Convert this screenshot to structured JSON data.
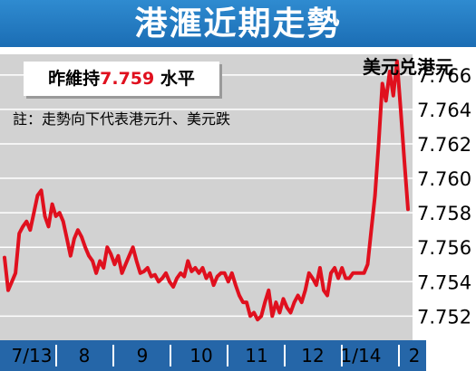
{
  "title": "港滙近期走勢",
  "value_box": {
    "prefix": "昨維持",
    "value": "7.759",
    "suffix": "水平"
  },
  "note": "註：走勢向下代表港元升、美元跌",
  "unit_label": "美元兑港元",
  "colors": {
    "title_bg": "#1f74bb",
    "line": "#e0101e",
    "plot_bg": "#d2d2d2",
    "axis_bar": "#2566a8"
  },
  "chart_data": {
    "type": "line",
    "title": "港滙近期走勢",
    "xlabel": "",
    "ylabel": "美元兑港元",
    "ylim": [
      7.7506,
      7.7672
    ],
    "y_ticks": [
      "7.752",
      "7.754",
      "7.756",
      "7.758",
      "7.760",
      "7.762",
      "7.764",
      "7.766"
    ],
    "x_ticks": [
      "7/13",
      "8",
      "9",
      "10",
      "11",
      "12",
      "1/14",
      "2"
    ],
    "grid": true,
    "series": [
      {
        "values": [
          7.7554,
          7.7535,
          7.754,
          7.7545,
          7.7568,
          7.7572,
          7.7575,
          7.757,
          7.758,
          7.759,
          7.7593,
          7.7578,
          7.7572,
          7.7585,
          7.7578,
          7.758,
          7.7575,
          7.7565,
          7.7555,
          7.7565,
          7.757,
          7.7566,
          7.756,
          7.7555,
          7.7552,
          7.7545,
          7.7552,
          7.7548,
          7.756,
          7.7556,
          7.755,
          7.7555,
          7.7545,
          7.755,
          7.7555,
          7.756,
          7.7552,
          7.7545,
          7.7546,
          7.7548,
          7.7543,
          7.7544,
          7.754,
          7.7542,
          7.7545,
          7.754,
          7.7537,
          7.7542,
          7.7545,
          7.7543,
          7.7552,
          7.7546,
          7.7548,
          7.7545,
          7.7548,
          7.7542,
          7.7545,
          7.7538,
          7.7543,
          7.7545,
          7.7545,
          7.754,
          7.7545,
          7.7538,
          7.7532,
          7.7528,
          7.7528,
          7.752,
          7.7522,
          7.7518,
          7.752,
          7.7528,
          7.7535,
          7.752,
          7.7528,
          7.7522,
          7.753,
          7.7525,
          7.7522,
          7.7528,
          7.7532,
          7.7528,
          7.7535,
          7.7545,
          7.7542,
          7.7538,
          7.7548,
          7.7535,
          7.7532,
          7.7545,
          7.7548,
          7.7542,
          7.7548,
          7.7542,
          7.7542,
          7.7545,
          7.7545,
          7.7545,
          7.7545,
          7.755,
          7.757,
          7.759,
          7.762,
          7.7655,
          7.7645,
          7.7662,
          7.7648,
          7.7668,
          7.764,
          7.761,
          7.7582
        ]
      }
    ]
  }
}
